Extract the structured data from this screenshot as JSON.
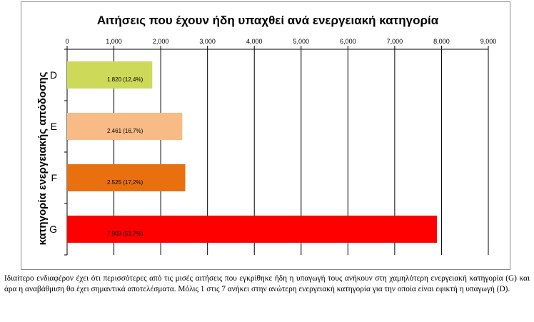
{
  "chart_data": {
    "type": "bar",
    "orientation": "horizontal",
    "title": "Αιτήσεις που έχουν ήδη υπαχθεί ανά ενεργειακή κατηγορία",
    "ylabel": "κατηγορία ενεργειακής απόδοσης",
    "xlabel": "",
    "categories": [
      "D",
      "E",
      "F",
      "G"
    ],
    "values": [
      1820,
      2461,
      2525,
      7903
    ],
    "data_labels": [
      "1.820 (12,4%)",
      "2.461 (16,7%)",
      "2.525 (17,2%)",
      "7.903 (53,7%)"
    ],
    "colors": [
      "#cdd958",
      "#f9bb86",
      "#e8700e",
      "#ff0000"
    ],
    "xlim": [
      0,
      9000
    ],
    "xticks": [
      0,
      1000,
      2000,
      3000,
      4000,
      5000,
      6000,
      7000,
      8000,
      9000
    ],
    "xtick_labels": [
      "0",
      "1,000",
      "2,000",
      "3,000",
      "4,000",
      "5,000",
      "6,000",
      "7,000",
      "8,000",
      "9,000"
    ],
    "x_axis_position": "top",
    "grid": "vertical",
    "legend": "none"
  },
  "caption": "Ιδιαίτερο ενδιαφέρον έχει ότι περισσότερες από τις μισές αιτήσεις που εγκρίθηκε ήδη η υπαγωγή τους ανήκουν στη χαμηλότερη ενεργειακή κατηγορία (G) και άρα η αναβάθμιση θα έχει σημαντικά αποτελέσματα. Μόλις 1 στις 7 ανήκει στην ανώτερη ενεργειακή κατηγορία για την οποία είναι εφικτή η υπαγωγή (D)."
}
